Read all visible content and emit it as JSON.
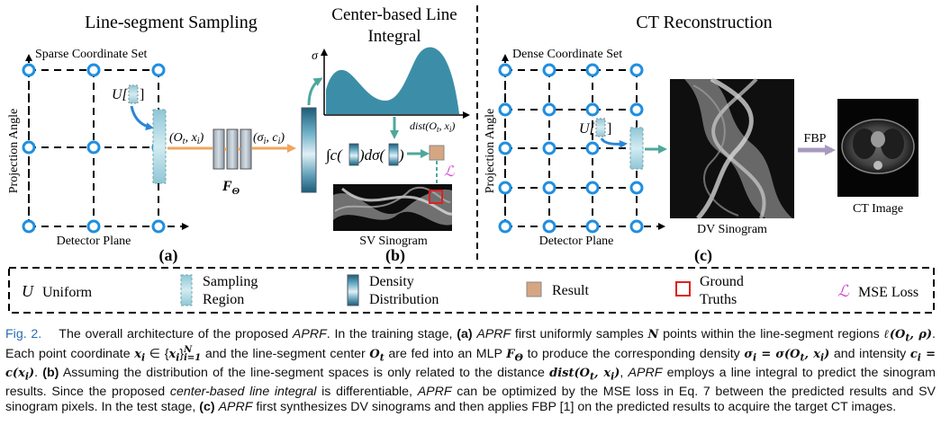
{
  "panels": {
    "a": {
      "title": "Line-segment Sampling",
      "grid_label": "Sparse Coordinate Set",
      "y_axis": "Projection Angle",
      "x_axis": "Detector Plane",
      "sample_op": "U[",
      "sample_op_close": "]",
      "input_label": "(O",
      "input_sub": "t",
      "input_rest": ", x",
      "input_sub2": "i",
      "input_close": ")",
      "mlp_label": "F",
      "mlp_sub": "Θ",
      "output_label": "(σ",
      "output_sub": "i",
      "output_rest": ", c",
      "output_sub2": "i",
      "output_close": ")",
      "tag": "(a)"
    },
    "b": {
      "title_line1": "Center-based Line",
      "title_line2": "Integral",
      "y_axis": "σ",
      "x_axis": "dist(O",
      "x_axis_sub": "t",
      "x_axis_rest": ", x",
      "x_axis_sub2": "i",
      "x_axis_close": ")",
      "integral_text": "∫c(",
      "integral_mid": ")dσ(",
      "integral_close": ")",
      "loss_symbol": "ℒ",
      "sinogram_label": "SV Sinogram",
      "tag": "(b)"
    },
    "c": {
      "title": "CT Reconstruction",
      "grid_label": "Dense Coordinate Set",
      "y_axis": "Projection Angle",
      "x_axis": "Detector Plane",
      "sample_op": "U[",
      "sample_op_close": "]",
      "sinogram_label": "DV Sinogram",
      "fbp_label": "FBP",
      "ct_label": "CT Image",
      "tag": "(c)"
    }
  },
  "legend": {
    "uniform_symbol": "U",
    "uniform": "Uniform",
    "sampling_line1": "Sampling",
    "sampling_line2": "Region",
    "density_line1": "Density",
    "density_line2": "Distribution",
    "result": "Result",
    "gt_line1": "Ground",
    "gt_line2": "Truths",
    "mse_symbol": "ℒ",
    "mse": "MSE Loss"
  },
  "caption": {
    "fig_label": "Fig. 2.",
    "t1": "The overall architecture of the proposed ",
    "aprf1": "APRF",
    "t2": ". In the training stage, ",
    "a_tag": "(a)",
    "aprf2": "APRF",
    "t3": " first uniformly samples ",
    "N": "N",
    "t4": " points within the line-segment regions ",
    "ell": "ℓ(O",
    "ell_sub": "t",
    "ell_rest": ", ρ)",
    "t5": ". Each point coordinate ",
    "xi": "x",
    "xi_sub": "i",
    "t6": " ∈ {",
    "set_x": "x",
    "set_sub": "i",
    "set_close": "}",
    "set_sup": "N",
    "set_low": "i=1",
    "t7": " and the line-segment center ",
    "Ot": "O",
    "Ot_sub": "t",
    "t8": " are fed into an MLP ",
    "F": "F",
    "F_sub": "Θ",
    "t9": " to produce the corresponding density ",
    "sig_eq": "σ",
    "sig_eq_sub": "i",
    "sig_eq_rest": " = σ(O",
    "sig_eq_sub2": "t",
    "sig_eq_rest2": ", x",
    "sig_eq_sub3": "i",
    "sig_eq_close": ")",
    "t10": " and intensity ",
    "c_eq": "c",
    "c_eq_sub": "i",
    "c_eq_rest": " = c(x",
    "c_eq_sub2": "i",
    "c_eq_close": ")",
    "t11": ". ",
    "b_tag": "(b)",
    "t12": " Assuming the distribution of the line-segment spaces is only related to the distance ",
    "dist": "dist(O",
    "dist_sub": "t",
    "dist_rest": ", x",
    "dist_sub2": "i",
    "dist_close": ")",
    "t13": ", ",
    "aprf3": "APRF",
    "t14": " employs a line integral to predict the sinogram results. Since the proposed ",
    "cbli": "center-based line integral",
    "t15": " is differentiable, ",
    "aprf4": "APRF",
    "t16": " can be optimized by the MSE loss in Eq. 7 between the predicted results and SV sinogram pixels. In the test stage, ",
    "c_tag": "(c)",
    "aprf5": "APRF",
    "t17": " first synthesizes DV sinograms and then applies FBP [1] on the predicted results to acquire the target CT images."
  }
}
